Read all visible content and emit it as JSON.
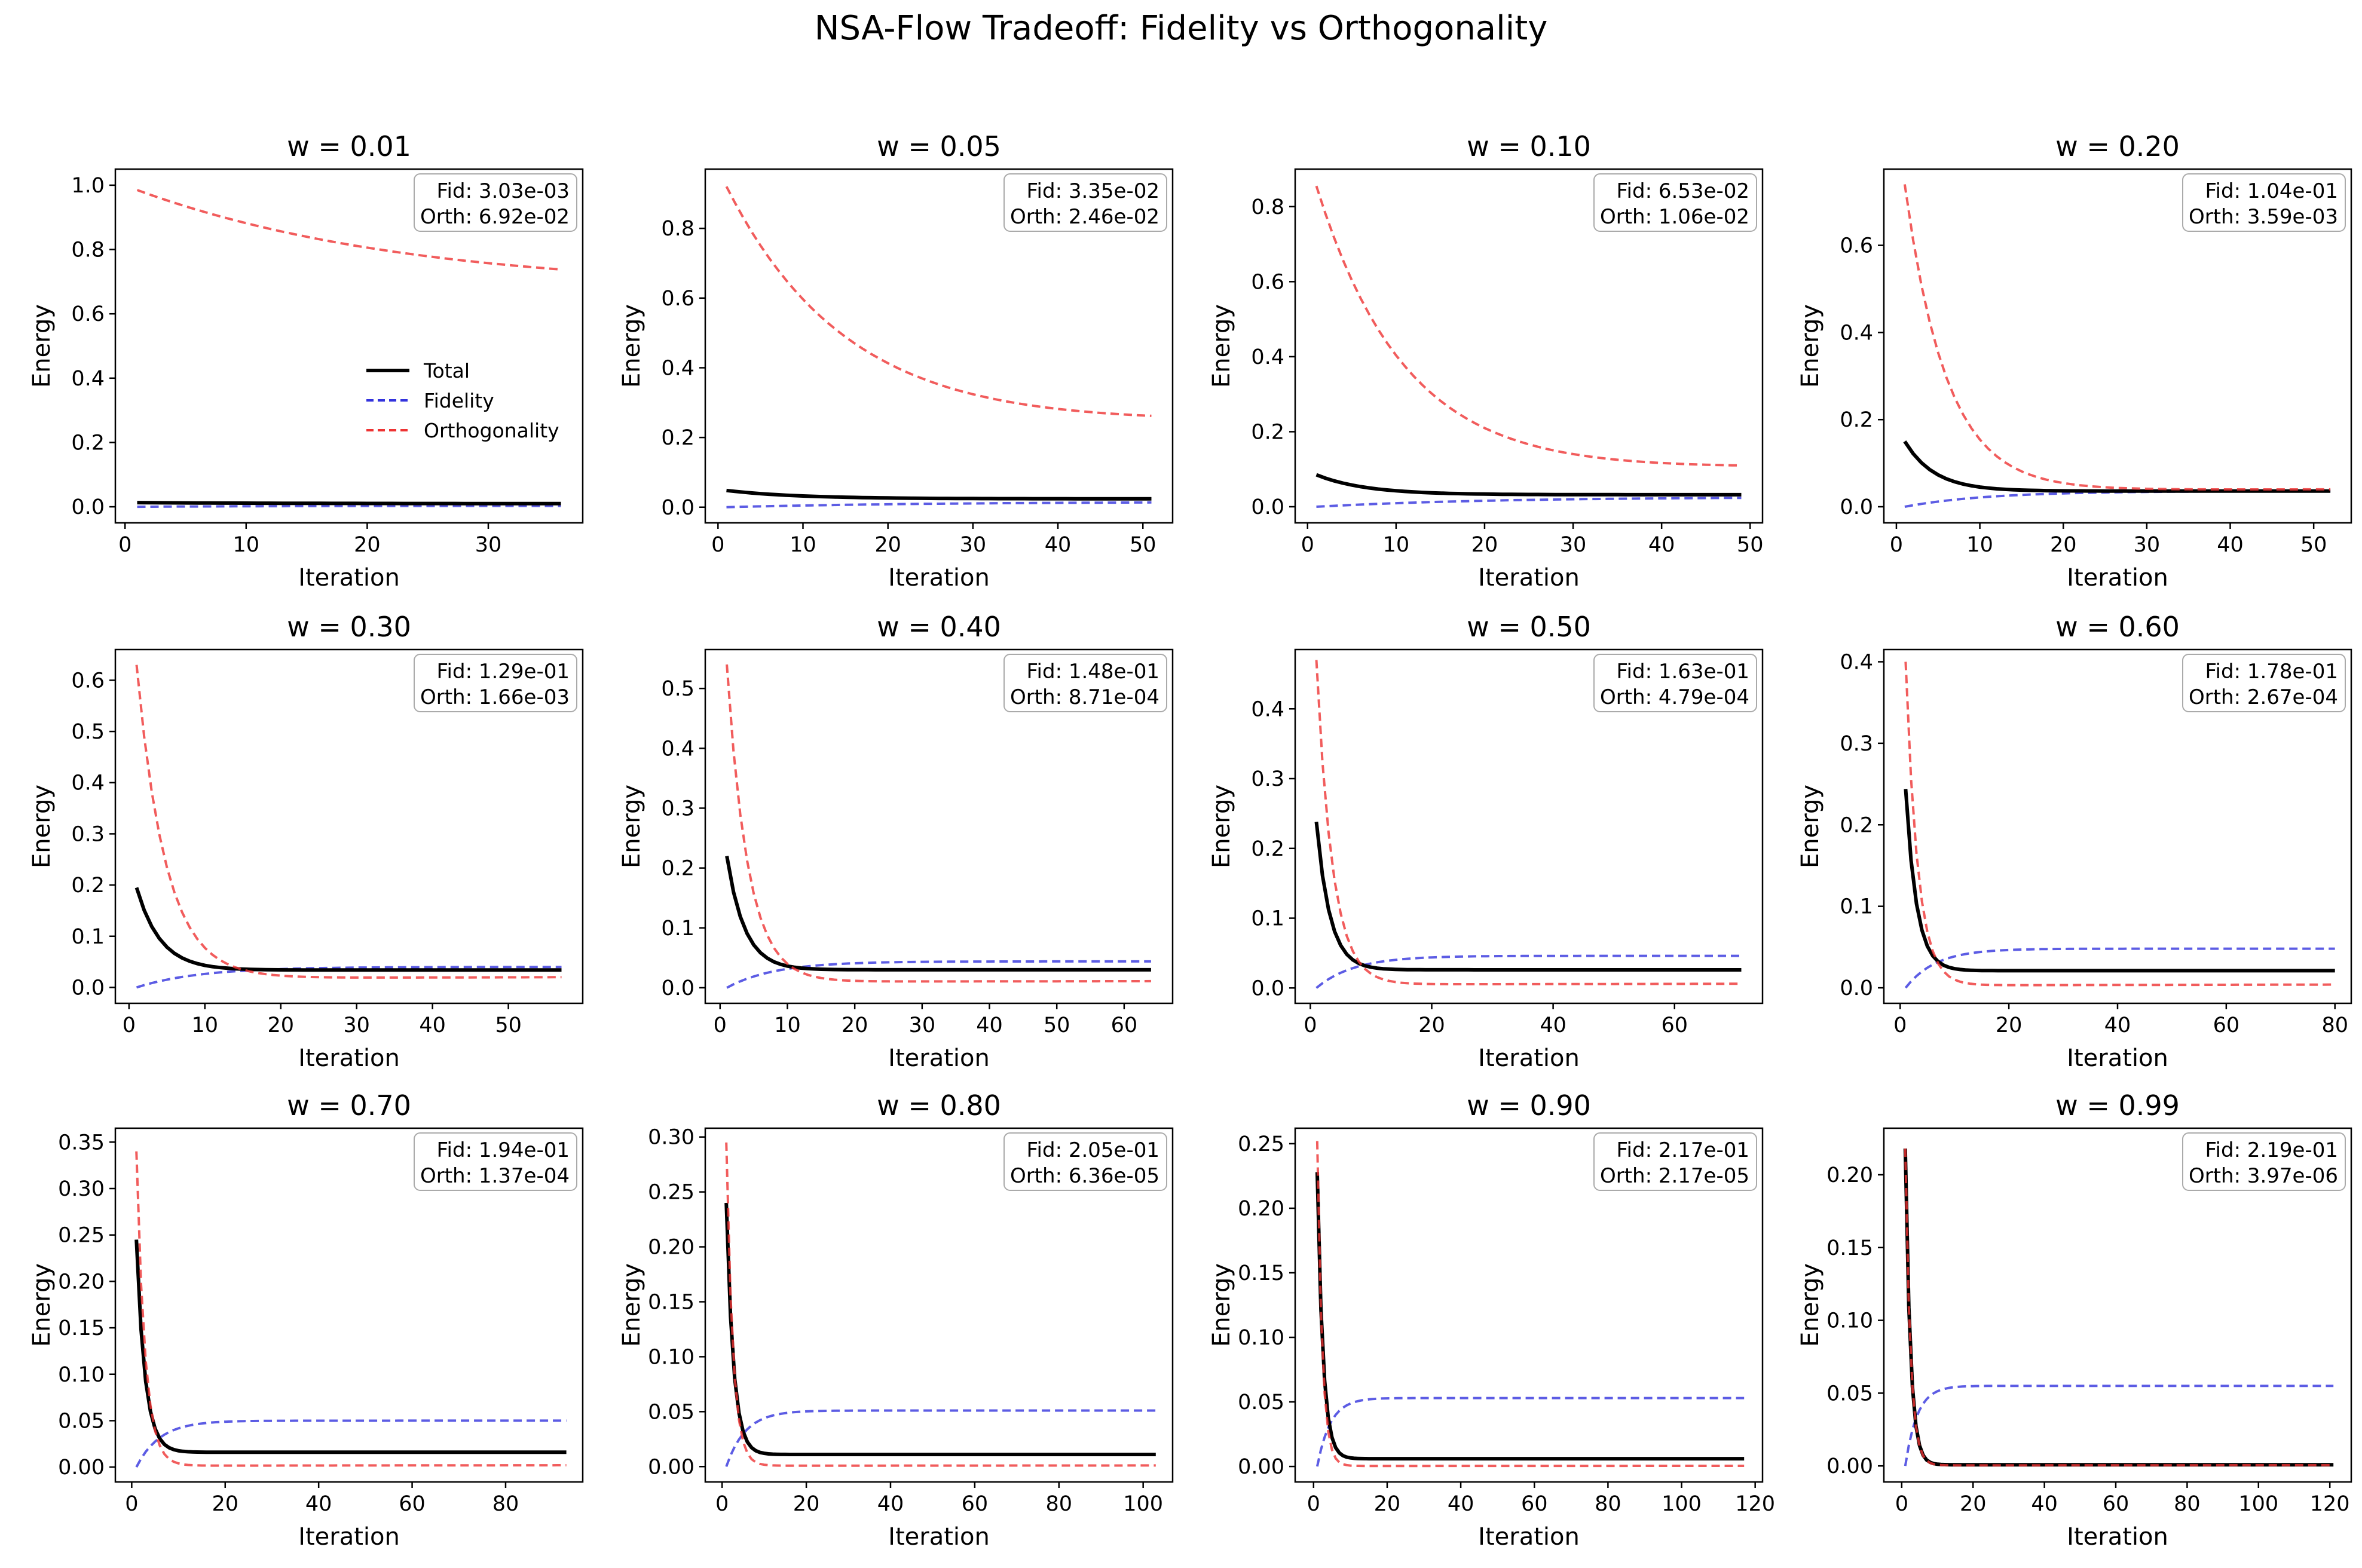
{
  "figure": {
    "title": "NSA-Flow Tradeoff: Fidelity vs Orthogonality"
  },
  "chart_data": [
    {
      "type": "line",
      "title": "w = 0.01",
      "xlabel": "Iteration",
      "ylabel": "Energy",
      "xlim": [
        -0.8,
        37.8
      ],
      "ylim": [
        -0.05,
        1.05
      ],
      "xticks": [
        0,
        10,
        20,
        30
      ],
      "yticks": [
        0.0,
        0.2,
        0.4,
        0.6,
        0.8,
        1.0
      ],
      "ytick_labels": [
        "0.0",
        "0.2",
        "0.4",
        "0.6",
        "0.8",
        "1.0"
      ],
      "annotation": {
        "fid": "Fid: 3.03e-03",
        "orth": "Orth: 6.92e-02"
      },
      "legend": {
        "placement": "center-right",
        "entries": [
          "Total",
          "Fidelity",
          "Orthogonality"
        ]
      },
      "curves": {
        "n": 36,
        "fidelity": {
          "start": 0.0,
          "end": 0.00303,
          "rate": 0.08
        },
        "orthogonality": {
          "start": 0.985,
          "end": 0.738,
          "floor": 0.62,
          "rate": 0.04
        },
        "total": {
          "start": 0.013,
          "end": 0.0097,
          "rate": 0.08
        }
      }
    },
    {
      "type": "line",
      "title": "w = 0.05",
      "xlabel": "Iteration",
      "ylabel": "Energy",
      "xlim": [
        -1.5,
        53.5
      ],
      "ylim": [
        -0.045,
        0.97
      ],
      "xticks": [
        0,
        10,
        20,
        30,
        40,
        50
      ],
      "yticks": [
        0.0,
        0.2,
        0.4,
        0.6,
        0.8
      ],
      "ytick_labels": [
        "0.0",
        "0.2",
        "0.4",
        "0.6",
        "0.8"
      ],
      "annotation": {
        "fid": "Fid: 3.35e-02",
        "orth": "Orth: 2.46e-02"
      },
      "curves": {
        "n": 51,
        "fidelity": {
          "start": 0.0,
          "end": 0.0157,
          "rate": 0.04
        },
        "orthogonality": {
          "start": 0.92,
          "end": 0.262,
          "floor": 0.22,
          "rate": 0.07
        },
        "total": {
          "start": 0.048,
          "end": 0.024,
          "rate": 0.12
        }
      }
    },
    {
      "type": "line",
      "title": "w = 0.10",
      "xlabel": "Iteration",
      "ylabel": "Energy",
      "xlim": [
        -1.4,
        51.4
      ],
      "ylim": [
        -0.043,
        0.9
      ],
      "xticks": [
        0,
        10,
        20,
        30,
        40,
        50
      ],
      "yticks": [
        0.0,
        0.2,
        0.4,
        0.6,
        0.8
      ],
      "ytick_labels": [
        "0.0",
        "0.2",
        "0.4",
        "0.6",
        "0.8"
      ],
      "annotation": {
        "fid": "Fid: 6.53e-02",
        "orth": "Orth: 1.06e-02"
      },
      "curves": {
        "n": 49,
        "fidelity": {
          "start": 0.0,
          "end": 0.026,
          "rate": 0.05
        },
        "orthogonality": {
          "start": 0.855,
          "end": 0.11,
          "floor": 0.09,
          "rate": 0.1
        },
        "total": {
          "start": 0.085,
          "end": 0.032,
          "rate": 0.18
        }
      }
    },
    {
      "type": "line",
      "title": "w = 0.20",
      "xlabel": "Iteration",
      "ylabel": "Energy",
      "xlim": [
        -1.5,
        54.5
      ],
      "ylim": [
        -0.037,
        0.775
      ],
      "xticks": [
        0,
        10,
        20,
        30,
        40,
        50
      ],
      "yticks": [
        0.0,
        0.2,
        0.4,
        0.6
      ],
      "ytick_labels": [
        "0.0",
        "0.2",
        "0.4",
        "0.6"
      ],
      "annotation": {
        "fid": "Fid: 1.04e-01",
        "orth": "Orth: 3.59e-03"
      },
      "curves": {
        "n": 52,
        "fidelity": {
          "start": 0.0,
          "end": 0.036,
          "rate": 0.1
        },
        "orthogonality": {
          "start": 0.74,
          "end": 0.04,
          "floor": 0.038,
          "rate": 0.2
        },
        "total": {
          "start": 0.15,
          "end": 0.036,
          "rate": 0.28
        }
      }
    },
    {
      "type": "line",
      "title": "w = 0.30",
      "xlabel": "Iteration",
      "ylabel": "Energy",
      "xlim": [
        -1.8,
        59.8
      ],
      "ylim": [
        -0.031,
        0.66
      ],
      "xticks": [
        0,
        10,
        20,
        30,
        40,
        50
      ],
      "yticks": [
        0.0,
        0.1,
        0.2,
        0.3,
        0.4,
        0.5,
        0.6
      ],
      "ytick_labels": [
        "0.0",
        "0.1",
        "0.2",
        "0.3",
        "0.4",
        "0.5",
        "0.6"
      ],
      "annotation": {
        "fid": "Fid: 1.29e-01",
        "orth": "Orth: 1.66e-03"
      },
      "curves": {
        "n": 57,
        "fidelity": {
          "start": 0.0,
          "end": 0.04,
          "rate": 0.12
        },
        "orthogonality": {
          "start": 0.63,
          "end": 0.02,
          "floor": 0.018,
          "rate": 0.26
        },
        "total": {
          "start": 0.195,
          "end": 0.034,
          "rate": 0.32
        }
      }
    },
    {
      "type": "line",
      "title": "w = 0.40",
      "xlabel": "Iteration",
      "ylabel": "Energy",
      "xlim": [
        -2.2,
        67.2
      ],
      "ylim": [
        -0.026,
        0.565
      ],
      "xticks": [
        0,
        10,
        20,
        30,
        40,
        50,
        60
      ],
      "yticks": [
        0.0,
        0.1,
        0.2,
        0.3,
        0.4,
        0.5
      ],
      "ytick_labels": [
        "0.0",
        "0.1",
        "0.2",
        "0.3",
        "0.4",
        "0.5"
      ],
      "annotation": {
        "fid": "Fid: 1.48e-01",
        "orth": "Orth: 8.71e-04"
      },
      "curves": {
        "n": 64,
        "fidelity": {
          "start": 0.0,
          "end": 0.044,
          "rate": 0.14
        },
        "orthogonality": {
          "start": 0.54,
          "end": 0.011,
          "floor": 0.01,
          "rate": 0.32
        },
        "total": {
          "start": 0.22,
          "end": 0.03,
          "rate": 0.38
        }
      }
    },
    {
      "type": "line",
      "title": "w = 0.50",
      "xlabel": "Iteration",
      "ylabel": "Energy",
      "xlim": [
        -2.5,
        74.5
      ],
      "ylim": [
        -0.022,
        0.485
      ],
      "xticks": [
        0,
        20,
        40,
        60
      ],
      "yticks": [
        0.0,
        0.1,
        0.2,
        0.3,
        0.4
      ],
      "ytick_labels": [
        "0.0",
        "0.1",
        "0.2",
        "0.3",
        "0.4"
      ],
      "annotation": {
        "fid": "Fid: 1.63e-01",
        "orth": "Orth: 4.79e-04"
      },
      "curves": {
        "n": 71,
        "fidelity": {
          "start": 0.0,
          "end": 0.046,
          "rate": 0.16
        },
        "orthogonality": {
          "start": 0.47,
          "end": 0.006,
          "floor": 0.005,
          "rate": 0.38
        },
        "total": {
          "start": 0.238,
          "end": 0.026,
          "rate": 0.45
        }
      }
    },
    {
      "type": "line",
      "title": "w = 0.60",
      "xlabel": "Iteration",
      "ylabel": "Energy",
      "xlim": [
        -3.0,
        83.0
      ],
      "ylim": [
        -0.019,
        0.415
      ],
      "xticks": [
        0,
        20,
        40,
        60,
        80
      ],
      "yticks": [
        0.0,
        0.1,
        0.2,
        0.3,
        0.4
      ],
      "ytick_labels": [
        "0.0",
        "0.1",
        "0.2",
        "0.3",
        "0.4"
      ],
      "annotation": {
        "fid": "Fid: 1.78e-01",
        "orth": "Orth: 2.67e-04"
      },
      "curves": {
        "n": 80,
        "fidelity": {
          "start": 0.0,
          "end": 0.048,
          "rate": 0.18
        },
        "orthogonality": {
          "start": 0.4,
          "end": 0.004,
          "floor": 0.003,
          "rate": 0.45
        },
        "total": {
          "start": 0.244,
          "end": 0.021,
          "rate": 0.5
        }
      }
    },
    {
      "type": "line",
      "title": "w = 0.70",
      "xlabel": "Iteration",
      "ylabel": "Energy",
      "xlim": [
        -3.5,
        96.5
      ],
      "ylim": [
        -0.016,
        0.365
      ],
      "xticks": [
        0,
        20,
        40,
        60,
        80
      ],
      "yticks": [
        0.0,
        0.05,
        0.1,
        0.15,
        0.2,
        0.25,
        0.3,
        0.35
      ],
      "ytick_labels": [
        "0.00",
        "0.05",
        "0.10",
        "0.15",
        "0.20",
        "0.25",
        "0.30",
        "0.35"
      ],
      "annotation": {
        "fid": "Fid: 1.94e-01",
        "orth": "Orth: 1.37e-04"
      },
      "curves": {
        "n": 93,
        "fidelity": {
          "start": 0.0,
          "end": 0.05,
          "rate": 0.2
        },
        "orthogonality": {
          "start": 0.34,
          "end": 0.002,
          "floor": 0.0015,
          "rate": 0.55
        },
        "total": {
          "start": 0.245,
          "end": 0.016,
          "rate": 0.55
        }
      }
    },
    {
      "type": "line",
      "title": "w = 0.80",
      "xlabel": "Iteration",
      "ylabel": "Energy",
      "xlim": [
        -4.0,
        107.0
      ],
      "ylim": [
        -0.014,
        0.308
      ],
      "xticks": [
        0,
        20,
        40,
        60,
        80,
        100
      ],
      "yticks": [
        0.0,
        0.05,
        0.1,
        0.15,
        0.2,
        0.25,
        0.3
      ],
      "ytick_labels": [
        "0.00",
        "0.05",
        "0.10",
        "0.15",
        "0.20",
        "0.25",
        "0.30"
      ],
      "annotation": {
        "fid": "Fid: 2.05e-01",
        "orth": "Orth: 6.36e-05"
      },
      "curves": {
        "n": 103,
        "fidelity": {
          "start": 0.0,
          "end": 0.051,
          "rate": 0.22
        },
        "orthogonality": {
          "start": 0.295,
          "end": 0.001,
          "floor": 0.0008,
          "rate": 0.65
        },
        "total": {
          "start": 0.24,
          "end": 0.011,
          "rate": 0.6
        }
      }
    },
    {
      "type": "line",
      "title": "w = 0.90",
      "xlabel": "Iteration",
      "ylabel": "Energy",
      "xlim": [
        -5.0,
        122.0
      ],
      "ylim": [
        -0.012,
        0.262
      ],
      "xticks": [
        0,
        20,
        40,
        60,
        80,
        100,
        120
      ],
      "yticks": [
        0.0,
        0.05,
        0.1,
        0.15,
        0.2,
        0.25
      ],
      "ytick_labels": [
        "0.00",
        "0.05",
        "0.10",
        "0.15",
        "0.20",
        "0.25"
      ],
      "annotation": {
        "fid": "Fid: 2.17e-01",
        "orth": "Orth: 2.17e-05"
      },
      "curves": {
        "n": 117,
        "fidelity": {
          "start": 0.0,
          "end": 0.053,
          "rate": 0.28
        },
        "orthogonality": {
          "start": 0.252,
          "end": 0.0005,
          "floor": 0.0004,
          "rate": 0.75
        },
        "total": {
          "start": 0.228,
          "end": 0.006,
          "rate": 0.65
        }
      }
    },
    {
      "type": "line",
      "title": "w = 0.99",
      "xlabel": "Iteration",
      "ylabel": "Energy",
      "xlim": [
        -5.0,
        126.0
      ],
      "ylim": [
        -0.011,
        0.232
      ],
      "xticks": [
        0,
        20,
        40,
        60,
        80,
        100,
        120
      ],
      "yticks": [
        0.0,
        0.05,
        0.1,
        0.15,
        0.2
      ],
      "ytick_labels": [
        "0.00",
        "0.05",
        "0.10",
        "0.15",
        "0.20"
      ],
      "annotation": {
        "fid": "Fid: 2.19e-01",
        "orth": "Orth: 3.97e-06"
      },
      "curves": {
        "n": 121,
        "fidelity": {
          "start": 0.0,
          "end": 0.055,
          "rate": 0.3
        },
        "orthogonality": {
          "start": 0.218,
          "end": 0.0005,
          "floor": 0.0004,
          "rate": 0.7
        },
        "total": {
          "start": 0.218,
          "end": 0.0008,
          "rate": 0.7
        }
      }
    }
  ],
  "colors": {
    "total": "#000000",
    "fidelity": "#3333dd",
    "orthogonality": "#ee3333",
    "annotation_border": "#aaaaaa"
  }
}
